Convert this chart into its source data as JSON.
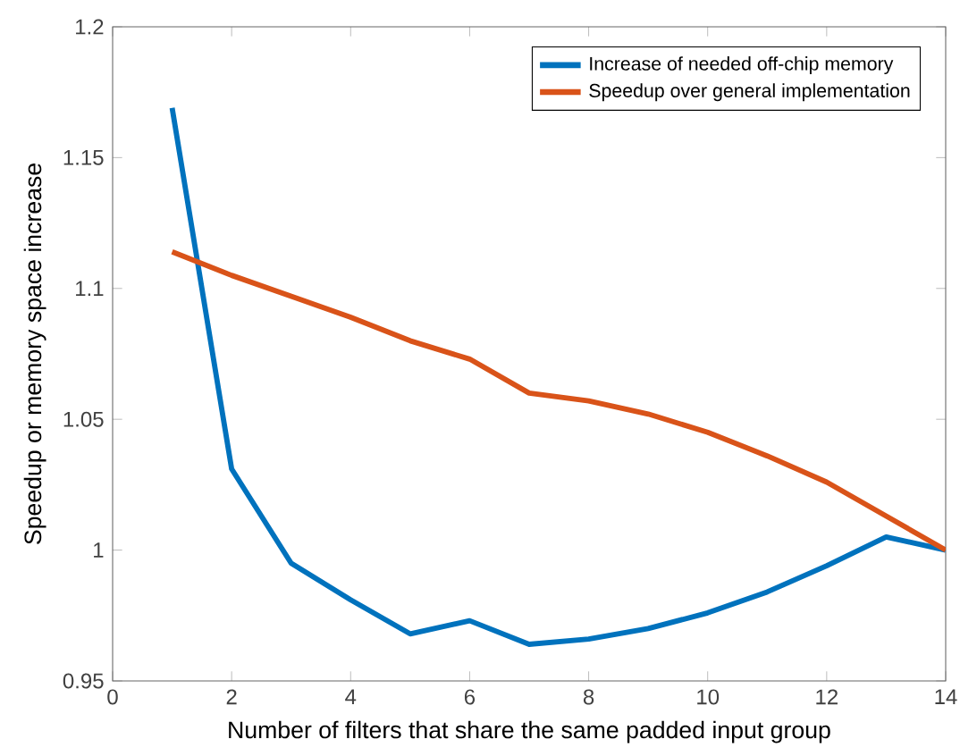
{
  "chart_data": {
    "type": "line",
    "xlabel": "Number of filters that share the same padded input group",
    "ylabel": "Speedup or memory space increase",
    "x": [
      1,
      2,
      3,
      4,
      5,
      6,
      7,
      8,
      9,
      10,
      11,
      12,
      13,
      14
    ],
    "series": [
      {
        "name": "Increase of needed off-chip memory",
        "color": "#0072bd",
        "values": [
          1.169,
          1.031,
          0.995,
          0.981,
          0.968,
          0.973,
          0.964,
          0.966,
          0.97,
          0.976,
          0.984,
          0.994,
          1.005,
          1.0
        ]
      },
      {
        "name": "Speedup over general implementation",
        "color": "#d95319",
        "values": [
          1.114,
          1.105,
          1.097,
          1.089,
          1.08,
          1.073,
          1.06,
          1.057,
          1.052,
          1.045,
          1.036,
          1.026,
          1.013,
          1.0
        ]
      }
    ],
    "xlim": [
      0,
      14
    ],
    "ylim": [
      0.95,
      1.2
    ],
    "xticks": [
      0,
      2,
      4,
      6,
      8,
      10,
      12,
      14
    ],
    "yticks": [
      0.95,
      1,
      1.05,
      1.1,
      1.15,
      1.2
    ],
    "legend": "top right",
    "grid": false,
    "marker": "none",
    "line_style": "solid"
  }
}
